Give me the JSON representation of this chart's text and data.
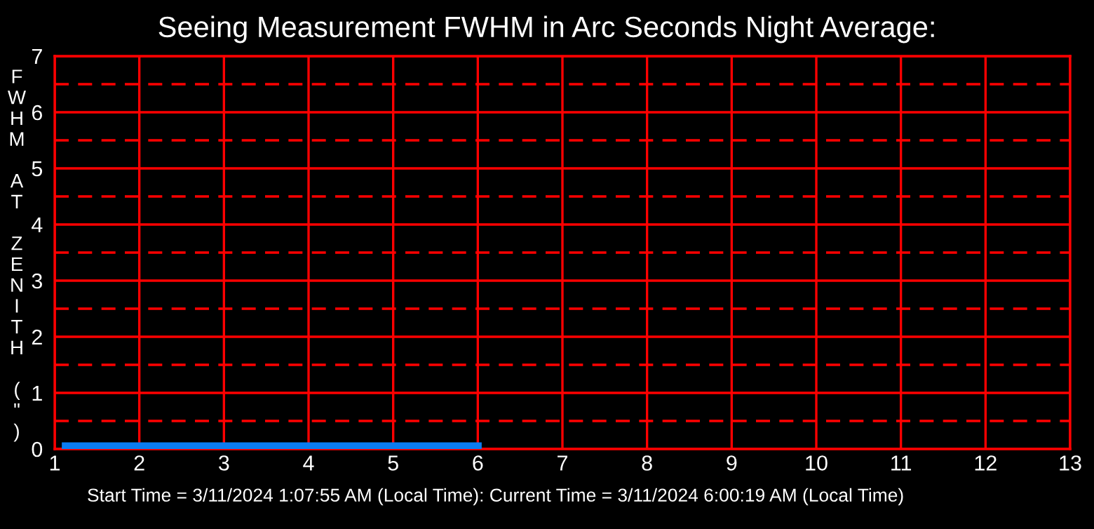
{
  "chart_data": {
    "type": "line",
    "title": "Seeing Measurement FWHM in Arc Seconds Night Average:",
    "ylabel": "FWHM AT ZENITH (\")",
    "x": [
      1.13,
      6.0
    ],
    "series": [
      {
        "color": "#0a7cf2",
        "values": [
          0.05,
          0.05
        ]
      }
    ],
    "xlim": [
      1,
      13
    ],
    "xticks": [
      1,
      2,
      3,
      4,
      5,
      6,
      7,
      8,
      9,
      10,
      11,
      12,
      13
    ],
    "ylim": [
      0,
      7
    ],
    "yticks": [
      0,
      1,
      2,
      3,
      4,
      5,
      6,
      7
    ],
    "grid": true,
    "legend": false,
    "marker": "none",
    "line_style": "solid",
    "ref_lines": [
      {
        "axis": "y",
        "value": 0.5,
        "color": "#ff0000",
        "line_style": "dashed"
      },
      {
        "axis": "y",
        "value": 1.5,
        "color": "#ff0000",
        "line_style": "dashed"
      },
      {
        "axis": "y",
        "value": 2.5,
        "color": "#ff0000",
        "line_style": "dashed"
      },
      {
        "axis": "y",
        "value": 3.5,
        "color": "#ff0000",
        "line_style": "dashed"
      },
      {
        "axis": "y",
        "value": 4.5,
        "color": "#ff0000",
        "line_style": "dashed"
      },
      {
        "axis": "y",
        "value": 5.5,
        "color": "#ff0000",
        "line_style": "dashed"
      },
      {
        "axis": "y",
        "value": 6.5,
        "color": "#ff0000",
        "line_style": "dashed"
      }
    ],
    "annotations": [
      "Start Time = 3/11/2024 1:07:55 AM (Local Time): Current Time = 3/11/2024 6:00:19 AM (Local Time)"
    ]
  }
}
